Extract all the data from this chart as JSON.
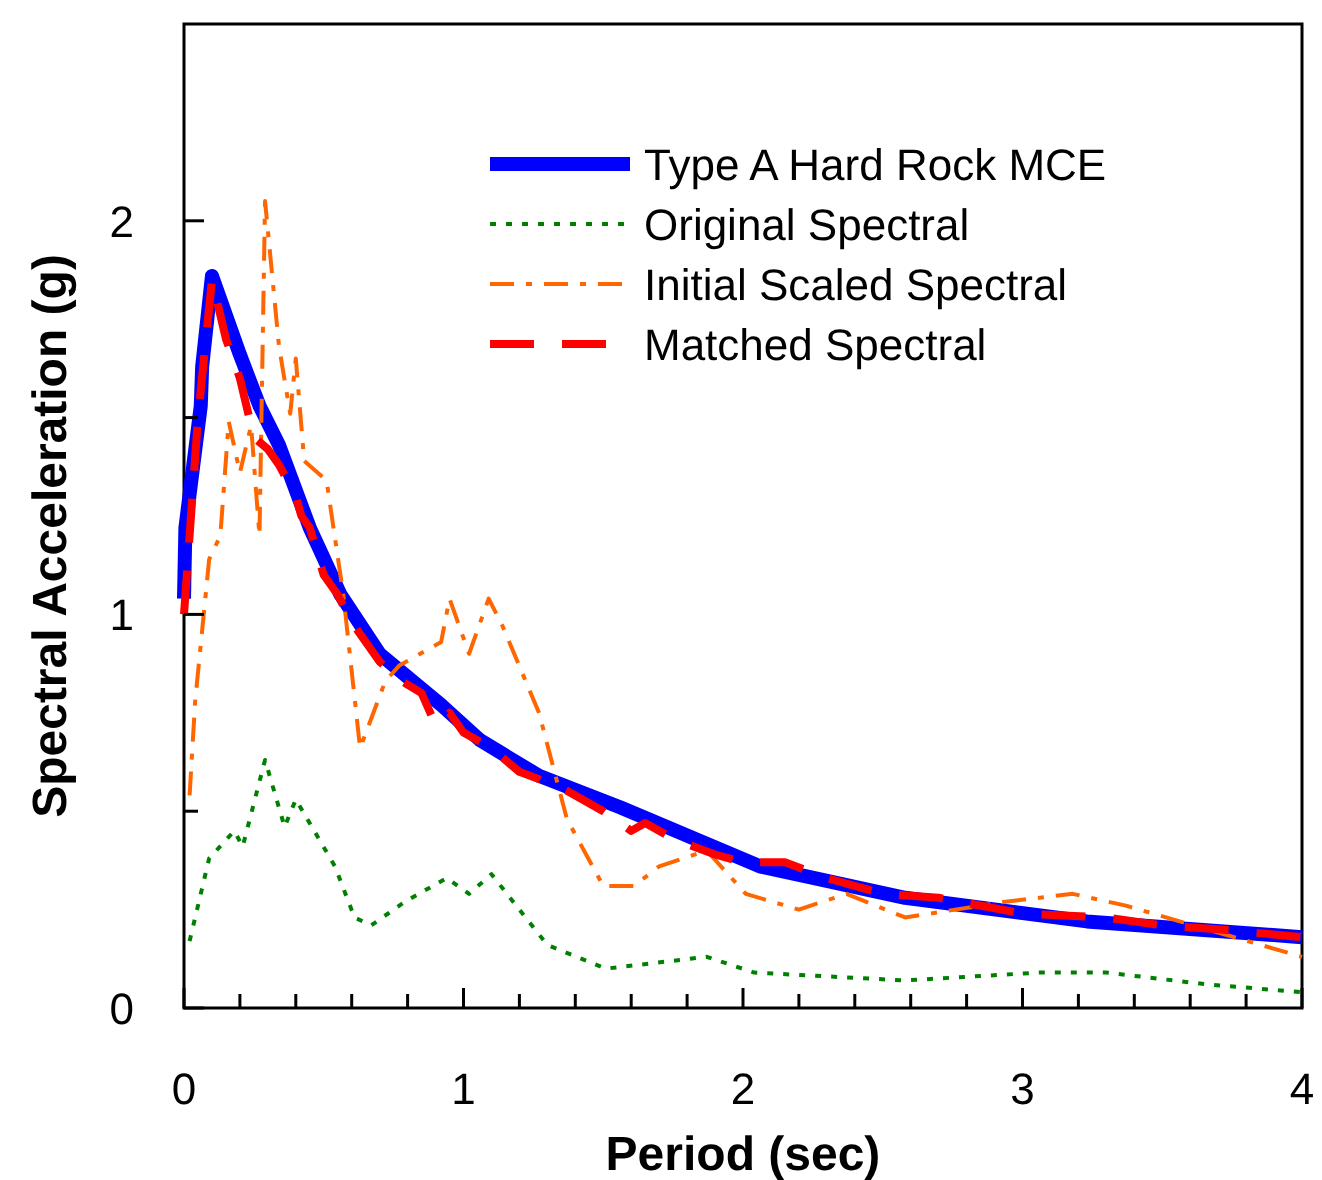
{
  "chart_data": {
    "type": "line",
    "xlabel": "Period (sec)",
    "ylabel": "Spectral Acceleration (g)",
    "xlim": [
      0,
      4
    ],
    "ylim": [
      0,
      2.5
    ],
    "xticks": [
      0,
      {
        "value": 0.2,
        "label": null
      },
      {
        "value": 0.4,
        "label": null
      },
      {
        "value": 0.6,
        "label": null
      },
      {
        "value": 0.8,
        "label": null
      },
      1,
      {
        "value": 1.2,
        "label": null
      },
      {
        "value": 1.4,
        "label": null
      },
      {
        "value": 1.6,
        "label": null
      },
      {
        "value": 1.8,
        "label": null
      },
      2,
      {
        "value": 2.2,
        "label": null
      },
      {
        "value": 2.4,
        "label": null
      },
      {
        "value": 2.6,
        "label": null
      },
      {
        "value": 2.8,
        "label": null
      },
      3,
      {
        "value": 3.2,
        "label": null
      },
      {
        "value": 3.4,
        "label": null
      },
      {
        "value": 3.6,
        "label": null
      },
      {
        "value": 3.8,
        "label": null
      },
      4
    ],
    "yticks": [
      0,
      {
        "value": 0.5,
        "label": null
      },
      1,
      {
        "value": 1.5,
        "label": null
      },
      2
    ],
    "grid": false,
    "legend": "top right",
    "marker": "none",
    "series": [
      {
        "name": "Type A Hard Rock MCE",
        "color": "#0000ff",
        "line_style": "solid",
        "x": [
          0,
          0.005,
          0.06,
          0.065,
          0.1,
          0.2,
          0.27,
          0.34,
          0.45,
          0.56,
          0.7,
          0.92,
          1.06,
          1.27,
          1.56,
          2.06,
          2.58,
          3.23,
          4.0
        ],
        "values": [
          1.04,
          1.22,
          1.53,
          1.63,
          1.86,
          1.66,
          1.53,
          1.43,
          1.22,
          1.05,
          0.9,
          0.77,
          0.68,
          0.59,
          0.51,
          0.36,
          0.28,
          0.22,
          0.18
        ]
      },
      {
        "name": "Original Spectral",
        "color": "#008000",
        "line_style": "dotted",
        "x": [
          0.02,
          0.09,
          0.18,
          0.21,
          0.29,
          0.36,
          0.4,
          0.54,
          0.61,
          0.67,
          0.79,
          0.94,
          1.02,
          1.1,
          1.3,
          1.51,
          1.87,
          2.04,
          2.58,
          3.06,
          3.3,
          3.66,
          4.0
        ],
        "values": [
          0.17,
          0.38,
          0.45,
          0.41,
          0.63,
          0.46,
          0.53,
          0.36,
          0.23,
          0.21,
          0.27,
          0.33,
          0.29,
          0.34,
          0.16,
          0.1,
          0.13,
          0.09,
          0.07,
          0.09,
          0.09,
          0.06,
          0.04
        ]
      },
      {
        "name": "Initial Scaled Spectral",
        "color": "#ff6600",
        "line_style": "dashdot",
        "x": [
          0.02,
          0.04,
          0.09,
          0.13,
          0.16,
          0.2,
          0.24,
          0.27,
          0.29,
          0.34,
          0.38,
          0.4,
          0.43,
          0.51,
          0.57,
          0.63,
          0.72,
          0.77,
          0.92,
          0.95,
          1.02,
          1.09,
          1.14,
          1.27,
          1.37,
          1.5,
          1.61,
          1.7,
          1.87,
          2.01,
          2.2,
          2.37,
          2.58,
          2.94,
          3.18,
          3.37,
          3.66,
          4.0
        ],
        "values": [
          0.54,
          0.78,
          1.14,
          1.2,
          1.49,
          1.36,
          1.48,
          1.2,
          2.05,
          1.68,
          1.51,
          1.65,
          1.39,
          1.34,
          1.05,
          0.66,
          0.83,
          0.87,
          0.93,
          1.04,
          0.9,
          1.04,
          0.97,
          0.75,
          0.48,
          0.31,
          0.31,
          0.36,
          0.4,
          0.29,
          0.25,
          0.29,
          0.23,
          0.27,
          0.29,
          0.26,
          0.2,
          0.13
        ]
      },
      {
        "name": "Matched Spectral",
        "color": "#ff0000",
        "line_style": "dashed",
        "x": [
          0,
          0.02,
          0.05,
          0.1,
          0.15,
          0.2,
          0.25,
          0.3,
          0.34,
          0.4,
          0.42,
          0.45,
          0.5,
          0.55,
          0.6,
          0.7,
          0.78,
          0.85,
          0.9,
          0.95,
          1.0,
          1.1,
          1.2,
          1.35,
          1.5,
          1.6,
          1.65,
          1.75,
          1.9,
          2.0,
          2.15,
          2.3,
          2.5,
          2.7,
          3.0,
          3.3,
          3.5,
          3.7,
          4.0
        ],
        "values": [
          1.0,
          1.2,
          1.5,
          1.85,
          1.7,
          1.6,
          1.45,
          1.42,
          1.38,
          1.3,
          1.25,
          1.22,
          1.1,
          1.05,
          0.98,
          0.88,
          0.83,
          0.8,
          0.72,
          0.75,
          0.7,
          0.66,
          0.6,
          0.56,
          0.5,
          0.45,
          0.47,
          0.43,
          0.39,
          0.37,
          0.37,
          0.33,
          0.29,
          0.28,
          0.24,
          0.23,
          0.21,
          0.2,
          0.18
        ]
      }
    ]
  }
}
